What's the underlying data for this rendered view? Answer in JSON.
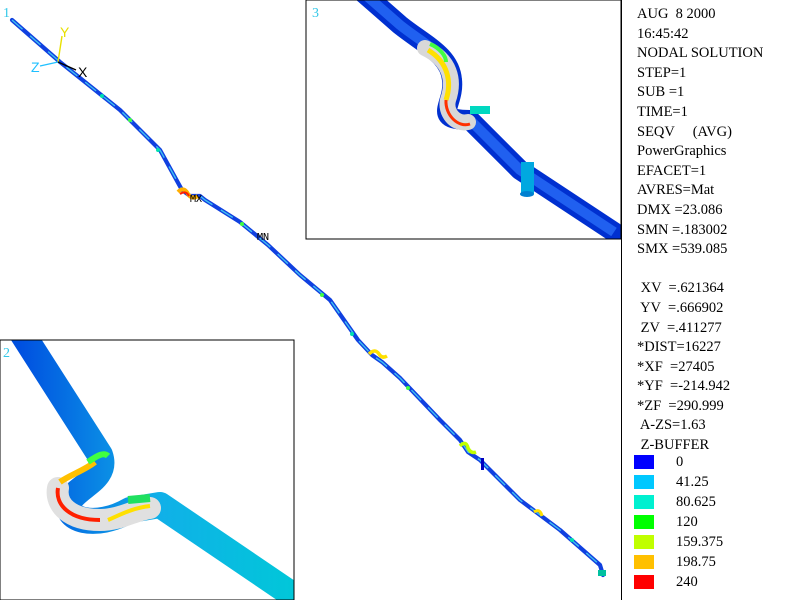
{
  "window_labels": [
    "1",
    "2",
    "3"
  ],
  "triad": {
    "x": "X",
    "y": "Y",
    "z": "Z"
  },
  "markers": {
    "max": "MX",
    "min": "MN"
  },
  "info_lines": [
    "AUG  8 2000",
    "16:45:42",
    "NODAL SOLUTION",
    "STEP=1",
    "SUB =1",
    "TIME=1",
    "SEQV     (AVG)",
    "PowerGraphics",
    "EFACET=1",
    "AVRES=Mat",
    "DMX =23.086",
    "SMN =.183002",
    "SMX =539.085",
    "",
    " XV  =.621364",
    " YV  =.666902",
    " ZV  =.411277",
    "*DIST=16227",
    "*XF  =27405",
    "*YF  =-214.942",
    "*ZF  =290.999",
    " A-ZS=1.63",
    " Z-BUFFER"
  ],
  "legend": [
    {
      "value": "0",
      "color": "#0000ff"
    },
    {
      "value": "41.25",
      "color": "#00c8ff"
    },
    {
      "value": "80.625",
      "color": "#00f0d0"
    },
    {
      "value": "120",
      "color": "#00ff00"
    },
    {
      "value": "159.375",
      "color": "#c0ff00"
    },
    {
      "value": "198.75",
      "color": "#ffc000"
    },
    {
      "value": "240",
      "color": "#ff0000"
    }
  ]
}
